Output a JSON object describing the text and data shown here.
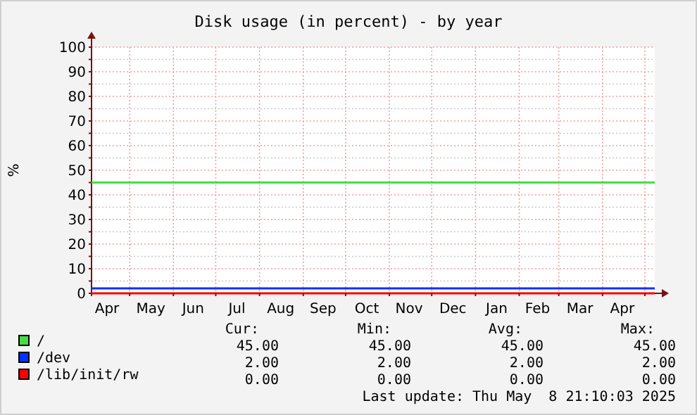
{
  "chart_data": {
    "type": "line",
    "title": "Disk usage (in percent) - by year",
    "ylabel": "%",
    "x": [
      "2024-04-04",
      "2025-05-08"
    ],
    "series": [
      {
        "name": "/",
        "color": "#44dd44",
        "values": [
          45,
          45
        ]
      },
      {
        "name": "/dev",
        "color": "#0033ff",
        "values": [
          2,
          2
        ]
      },
      {
        "name": "/lib/init/rw",
        "color": "#ff0000",
        "values": [
          0,
          0
        ]
      }
    ],
    "xlim": [
      "2024-04-04",
      "2025-05-08"
    ],
    "xticks": [
      {
        "value": "2024-04-15",
        "label": "Apr"
      },
      {
        "value": "2024-05-01",
        "label": null
      },
      {
        "value": "2024-05-16",
        "label": "May"
      },
      {
        "value": "2024-06-01",
        "label": null
      },
      {
        "value": "2024-06-15",
        "label": "Jun"
      },
      {
        "value": "2024-07-01",
        "label": null
      },
      {
        "value": "2024-07-16",
        "label": "Jul"
      },
      {
        "value": "2024-08-01",
        "label": null
      },
      {
        "value": "2024-08-16",
        "label": "Aug"
      },
      {
        "value": "2024-09-01",
        "label": null
      },
      {
        "value": "2024-09-15",
        "label": "Sep"
      },
      {
        "value": "2024-10-01",
        "label": null
      },
      {
        "value": "2024-10-16",
        "label": "Oct"
      },
      {
        "value": "2024-11-01",
        "label": null
      },
      {
        "value": "2024-11-15",
        "label": "Nov"
      },
      {
        "value": "2024-12-01",
        "label": null
      },
      {
        "value": "2024-12-16",
        "label": "Dec"
      },
      {
        "value": "2025-01-01",
        "label": null
      },
      {
        "value": "2025-01-16",
        "label": "Jan"
      },
      {
        "value": "2025-02-01",
        "label": null
      },
      {
        "value": "2025-02-14",
        "label": "Feb"
      },
      {
        "value": "2025-03-01",
        "label": null
      },
      {
        "value": "2025-03-16",
        "label": "Mar"
      },
      {
        "value": "2025-04-01",
        "label": null
      },
      {
        "value": "2025-04-15",
        "label": "Apr"
      },
      {
        "value": "2025-05-01",
        "label": null
      }
    ],
    "ylim": [
      0,
      100
    ],
    "yticks": [
      0,
      {
        "value": 5,
        "label": null
      },
      10,
      {
        "value": 15,
        "label": null
      },
      20,
      {
        "value": 25,
        "label": null
      },
      30,
      {
        "value": 35,
        "label": null
      },
      40,
      {
        "value": 45,
        "label": null
      },
      50,
      {
        "value": 55,
        "label": null
      },
      60,
      {
        "value": 65,
        "label": null
      },
      70,
      {
        "value": 75,
        "label": null
      },
      80,
      {
        "value": 85,
        "label": null
      },
      90,
      {
        "value": 95,
        "label": null
      },
      100
    ],
    "grid": true,
    "legend": "bottom",
    "marker": "none",
    "line_style": "solid",
    "annotations": [
      "Cur:",
      "Min:",
      "Avg:",
      "Max:",
      "45.00",
      "45.00",
      "45.00",
      "45.00",
      "2.00",
      "2.00",
      "2.00",
      "2.00",
      "0.00",
      "0.00",
      "0.00",
      "0.00",
      "Last update: Thu May  8 21:10:03 2025"
    ]
  }
}
